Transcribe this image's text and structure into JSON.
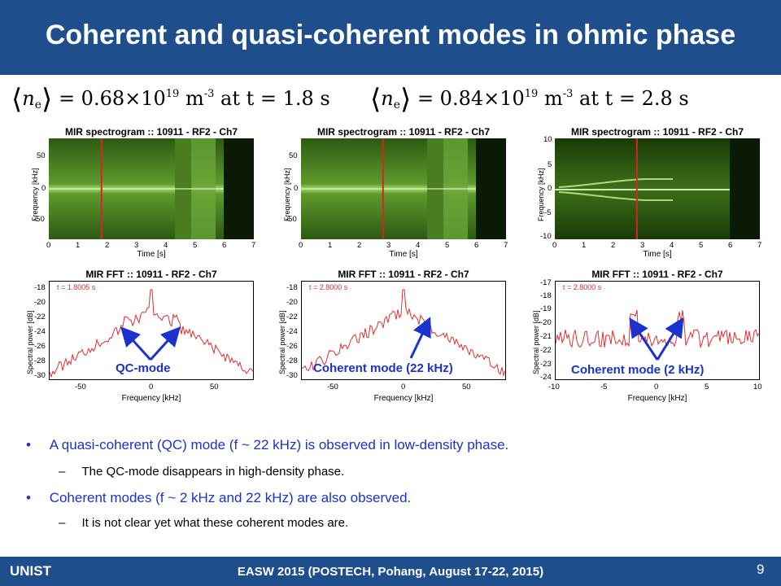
{
  "slide": {
    "title": "Coherent and quasi-coherent modes in ohmic phase",
    "page_number": "9",
    "footer_left": "UNIST",
    "footer_center": "EASW 2015 (POSTECH, Pohang, August 17-22, 2015)"
  },
  "equations": {
    "left": {
      "symbol_n": "n",
      "symbol_sub": "e",
      "value": "= 0.68×10",
      "exp": "19",
      "unit": " m",
      "unit_exp": "-3",
      "time": " at t = 1.8 s"
    },
    "right": {
      "symbol_n": "n",
      "symbol_sub": "e",
      "value": "= 0.84×10",
      "exp": "19",
      "unit": " m",
      "unit_exp": "-3",
      "time": " at t = 2.8 s"
    }
  },
  "spectrograms": {
    "title": "MIR spectrogram  ::  10911 - RF2 - Ch7",
    "ylabel": "Frequency [kHz]",
    "xlabel": "Time [s]",
    "xticks": [
      "0",
      "1",
      "2",
      "3",
      "4",
      "5",
      "6",
      "7"
    ],
    "yticks_wide": [
      "50",
      "0",
      "-50"
    ],
    "yticks_narrow": [
      "10",
      "5",
      "0",
      "-5",
      "-10"
    ],
    "marker_times": [
      1.8,
      2.8,
      2.8
    ]
  },
  "ffts": {
    "title": "MIR FFT  ::  10911 - RF2 - Ch7",
    "ylabel": "Spectral power [dB]",
    "xlabel": "Frequency [kHz]",
    "t_labels": [
      "t = 1.8005 s",
      "t = 2.8000 s",
      "t = 2.8000 s"
    ],
    "yticks_a": [
      "-18",
      "-20",
      "-22",
      "-24",
      "-26",
      "-28",
      "-30"
    ],
    "yticks_c": [
      "-17",
      "-18",
      "-19",
      "-20",
      "-21",
      "-22",
      "-23",
      "-24"
    ],
    "xticks_wide": [
      "-50",
      "0",
      "50"
    ],
    "xticks_narrow": [
      "-10",
      "-5",
      "0",
      "5",
      "10"
    ]
  },
  "annotations": {
    "qc": "QC-mode",
    "coherent22": "Coherent mode (22 kHz)",
    "coherent2": "Coherent mode (2 kHz)"
  },
  "bullets": [
    {
      "text": "A quasi-coherent (QC) mode (f ~ 22 kHz) is observed in low-density phase.",
      "color": "#1a33cc"
    },
    {
      "text": "The QC-mode disappears in high-density phase.",
      "color": "#000000"
    },
    {
      "text": "Coherent modes (f ~ 2 kHz and 22 kHz) are also observed.",
      "color": "#1a33cc"
    },
    {
      "text": "It is not clear yet what these coherent modes are.",
      "color": "#000000"
    }
  ],
  "bullet_marks": {
    "main": "•",
    "sub": "–"
  },
  "colors": {
    "header": "#1f4e8c",
    "accent": "#1a33cc",
    "trace": "#e03030",
    "marker": "#dd2222"
  }
}
